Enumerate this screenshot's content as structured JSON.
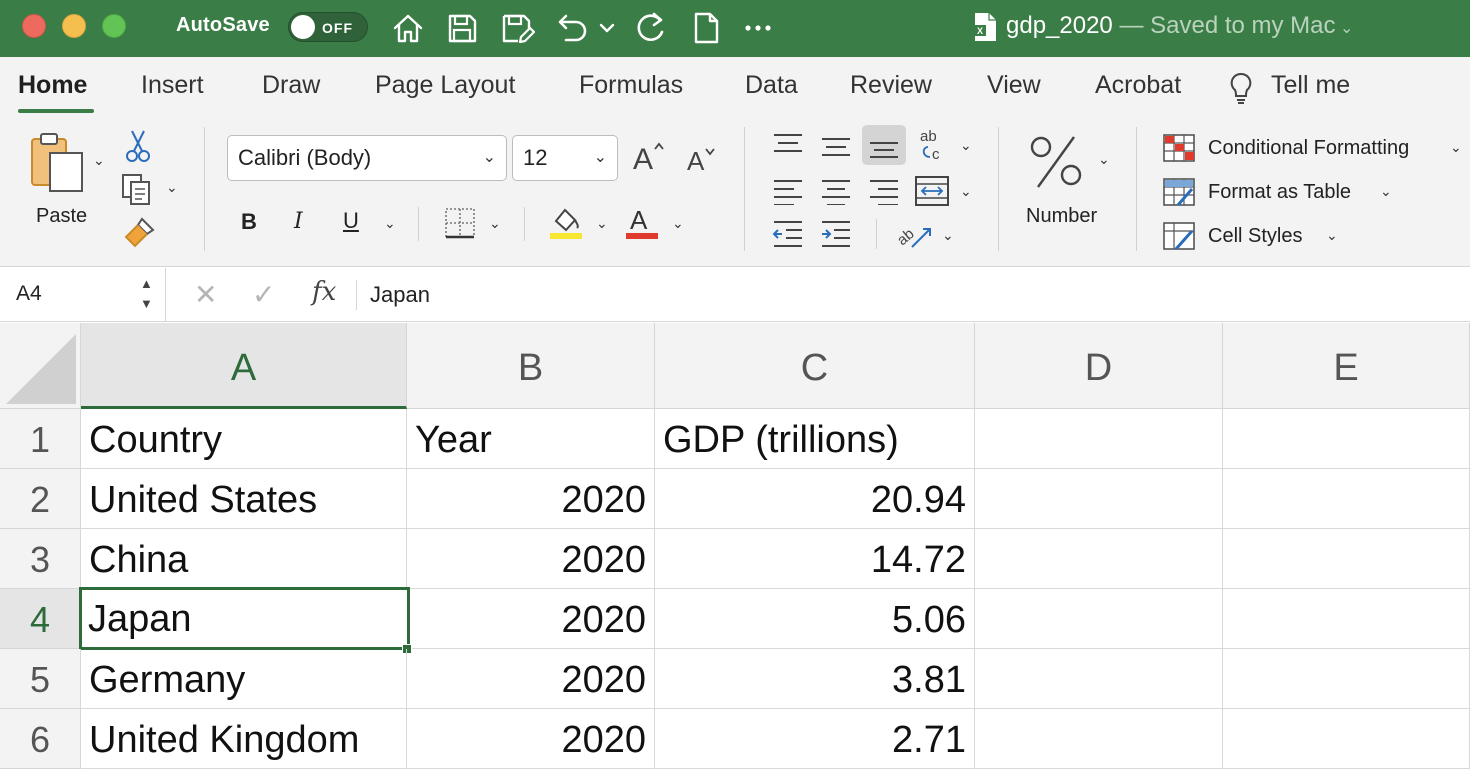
{
  "titlebar": {
    "autosave_label": "AutoSave",
    "autosave_state": "OFF",
    "doc_name": "gdp_2020",
    "doc_status": " — Saved to my Mac",
    "icons": [
      "home-icon",
      "save-icon",
      "save-as-icon",
      "undo-icon",
      "redo-icon",
      "new-doc-icon",
      "more-icon"
    ]
  },
  "ribbon": {
    "tabs": [
      "Home",
      "Insert",
      "Draw",
      "Page Layout",
      "Formulas",
      "Data",
      "Review",
      "View",
      "Acrobat",
      "Tell me"
    ],
    "active_tab": "Home",
    "clipboard": {
      "paste_label": "Paste"
    },
    "font": {
      "name": "Calibri (Body)",
      "size": "12"
    },
    "number": {
      "label": "Number",
      "symbol": "%"
    },
    "styles": {
      "conditional": "Conditional Formatting",
      "format_table": "Format as Table",
      "cell_styles": "Cell Styles"
    },
    "format_labels": {
      "bold": "B",
      "italic": "I",
      "underline": "U",
      "font_color": "A"
    }
  },
  "formula_bar": {
    "cell_ref": "A4",
    "fx": "fx",
    "content": "Japan"
  },
  "sheet": {
    "columns": [
      "A",
      "B",
      "C",
      "D",
      "E"
    ],
    "active_column": "A",
    "active_row": "4",
    "rows": [
      {
        "num": "1",
        "a": "Country",
        "b": "Year",
        "c": "GDP (trillions)"
      },
      {
        "num": "2",
        "a": "United States",
        "b": "2020",
        "c": "20.94"
      },
      {
        "num": "3",
        "a": "China",
        "b": "2020",
        "c": "14.72"
      },
      {
        "num": "4",
        "a": "Japan",
        "b": "2020",
        "c": "5.06"
      },
      {
        "num": "5",
        "a": "Germany",
        "b": "2020",
        "c": "3.81"
      },
      {
        "num": "6",
        "a": "United Kingdom",
        "b": "2020",
        "c": "2.71"
      }
    ]
  },
  "colors": {
    "titlebar": "#3b7d46",
    "accent": "#2d6b3a",
    "highlight_yellow": "#f7e733",
    "font_red": "#e03a2f"
  }
}
